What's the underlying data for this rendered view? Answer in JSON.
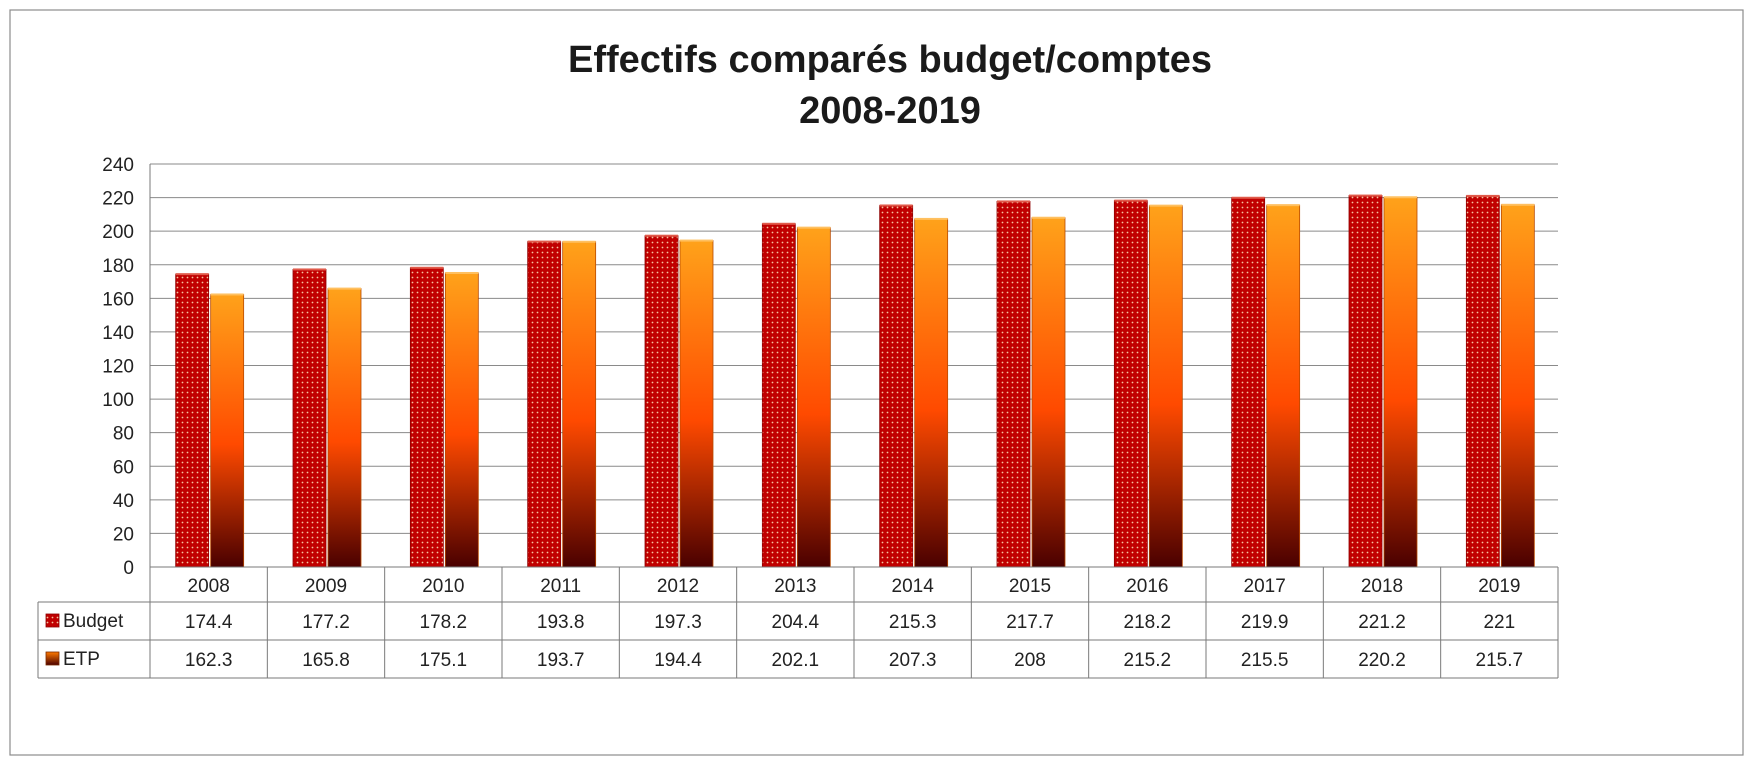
{
  "chart_data": {
    "type": "bar",
    "title": "Effectifs comparés budget/comptes",
    "subtitle": "2008-2019",
    "categories": [
      "2008",
      "2009",
      "2010",
      "2011",
      "2012",
      "2013",
      "2014",
      "2015",
      "2016",
      "2017",
      "2018",
      "2019"
    ],
    "series": [
      {
        "name": "Budget",
        "values": [
          174.4,
          177.2,
          178.2,
          193.8,
          197.3,
          204.4,
          215.3,
          217.7,
          218.2,
          219.9,
          221.2,
          221
        ],
        "labels": [
          "174.4",
          "177.2",
          "178.2",
          "193.8",
          "197.3",
          "204.4",
          "215.3",
          "217.7",
          "218.2",
          "219.9",
          "221.2",
          "221"
        ]
      },
      {
        "name": "ETP",
        "values": [
          162.3,
          165.8,
          175.1,
          193.7,
          194.4,
          202.1,
          207.3,
          208,
          215.2,
          215.5,
          220.2,
          215.7
        ],
        "labels": [
          "162.3",
          "165.8",
          "175.1",
          "193.7",
          "194.4",
          "202.1",
          "207.3",
          "208",
          "215.2",
          "215.5",
          "220.2",
          "215.7"
        ]
      }
    ],
    "ylim": [
      0,
      240
    ],
    "yticks": [
      "0",
      "20",
      "40",
      "60",
      "80",
      "100",
      "120",
      "140",
      "160",
      "180",
      "200",
      "220",
      "240"
    ],
    "grid": true,
    "legend": "data-table",
    "colors": {
      "budget": "#c00000",
      "budget_dots": "#f2c4a0",
      "etp_top": "#ffa21a",
      "etp_mid": "#ff4a00",
      "etp_bottom": "#4a0000",
      "gridline": "#8a8a8a"
    }
  }
}
